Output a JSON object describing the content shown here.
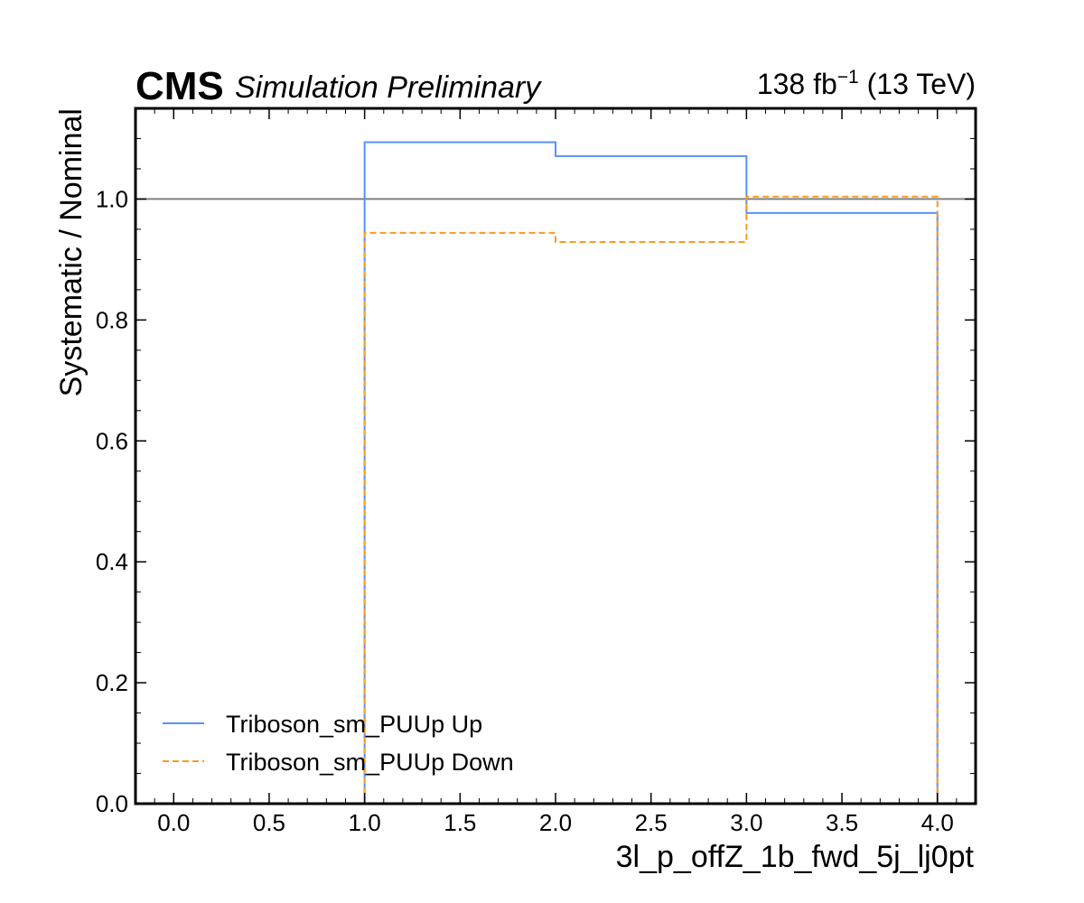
{
  "header": {
    "experiment": "CMS",
    "status": "Simulation Preliminary",
    "lumi_value": "138 fb",
    "lumi_exp": "−1",
    "energy": " (13 TeV)"
  },
  "chart_data": {
    "type": "line",
    "xlabel": "3l_p_offZ_1b_fwd_5j_lj0pt",
    "ylabel": "Systematic / Nominal",
    "xlim": [
      -0.2,
      4.2
    ],
    "ylim": [
      0.0,
      1.15
    ],
    "xticks": [
      0.0,
      0.5,
      1.0,
      1.5,
      2.0,
      2.5,
      3.0,
      3.5,
      4.0
    ],
    "xtick_labels": [
      "0.0",
      "0.5",
      "1.0",
      "1.5",
      "2.0",
      "2.5",
      "3.0",
      "3.5",
      "4.0"
    ],
    "yticks": [
      0.0,
      0.2,
      0.4,
      0.6,
      0.8,
      1.0
    ],
    "ytick_labels": [
      "0.0",
      "0.2",
      "0.4",
      "0.6",
      "0.8",
      "1.0"
    ],
    "reference_line": 1.0,
    "bin_edges": [
      1.0,
      2.0,
      3.0,
      4.0
    ],
    "series": [
      {
        "name": "Triboson_sm_PUUp Up",
        "color": "#5790fc",
        "style": "solid",
        "values": [
          1.094,
          1.071,
          0.977
        ]
      },
      {
        "name": "Triboson_sm_PUUp Down",
        "color": "#f89c20",
        "style": "dashed",
        "values": [
          0.944,
          0.929,
          1.004
        ]
      }
    ],
    "grid": false,
    "legend_position": "lower-left"
  }
}
